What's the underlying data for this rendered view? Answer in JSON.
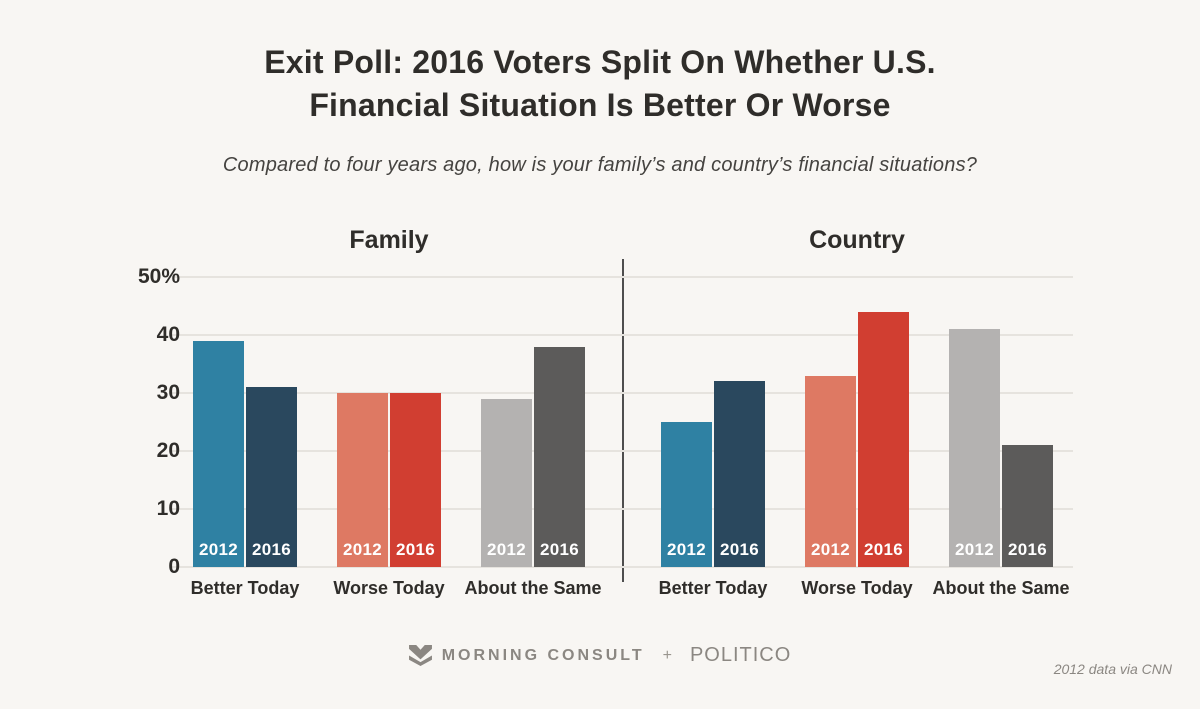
{
  "header": {
    "title_line1": "Exit Poll: 2016 Voters Split On Whether U.S.",
    "title_line2": "Financial Situation Is Better Or Worse",
    "subtitle": "Compared to four years ago, how is your family’s and country’s financial situations?"
  },
  "chart_data": {
    "type": "bar",
    "title": "Exit Poll: 2016 Voters Split On Whether U.S. Financial Situation Is Better Or Worse",
    "subtitle": "Compared to four years ago, how is your family’s and country’s financial situations?",
    "ylim": [
      0,
      50
    ],
    "grid": true,
    "unit": "percent",
    "series_labels": [
      "2012",
      "2016"
    ],
    "yticks": [
      {
        "value": 50,
        "label": "50%"
      },
      {
        "value": 40,
        "label": "40"
      },
      {
        "value": 30,
        "label": "30"
      },
      {
        "value": 20,
        "label": "20"
      },
      {
        "value": 10,
        "label": "10"
      },
      {
        "value": 0,
        "label": "0"
      }
    ],
    "panels": [
      {
        "title": "Family",
        "groups": [
          {
            "label": "Better Today",
            "bars": [
              {
                "series": "2012",
                "value": 39,
                "color": "#2f81a3"
              },
              {
                "series": "2016",
                "value": 31,
                "color": "#2a485e"
              }
            ]
          },
          {
            "label": "Worse Today",
            "bars": [
              {
                "series": "2012",
                "value": 30,
                "color": "#de7963"
              },
              {
                "series": "2016",
                "value": 30,
                "color": "#d13e31"
              }
            ]
          },
          {
            "label": "About the Same",
            "bars": [
              {
                "series": "2012",
                "value": 29,
                "color": "#b4b2b1"
              },
              {
                "series": "2016",
                "value": 38,
                "color": "#5c5b5a"
              }
            ]
          }
        ]
      },
      {
        "title": "Country",
        "groups": [
          {
            "label": "Better Today",
            "bars": [
              {
                "series": "2012",
                "value": 25,
                "color": "#2f81a3"
              },
              {
                "series": "2016",
                "value": 32,
                "color": "#2a485e"
              }
            ]
          },
          {
            "label": "Worse Today",
            "bars": [
              {
                "series": "2012",
                "value": 33,
                "color": "#de7963"
              },
              {
                "series": "2016",
                "value": 44,
                "color": "#d13e31"
              }
            ]
          },
          {
            "label": "About the Same",
            "bars": [
              {
                "series": "2012",
                "value": 41,
                "color": "#b4b2b1"
              },
              {
                "series": "2016",
                "value": 21,
                "color": "#5c5b5a"
              }
            ]
          }
        ]
      }
    ]
  },
  "footer": {
    "brand": "MORNING CONSULT",
    "plus": "+",
    "partner": "POLITICO",
    "note": "2012 data via CNN"
  },
  "colors": {
    "background": "#f8f6f3",
    "text_dark": "#2f2d2a",
    "subtitle_gray": "#454340",
    "gridline": "#e6e3de",
    "divider": "#4e4e4e",
    "footer_gray": "#8b8782",
    "bar_label_white": "#ffffff"
  }
}
